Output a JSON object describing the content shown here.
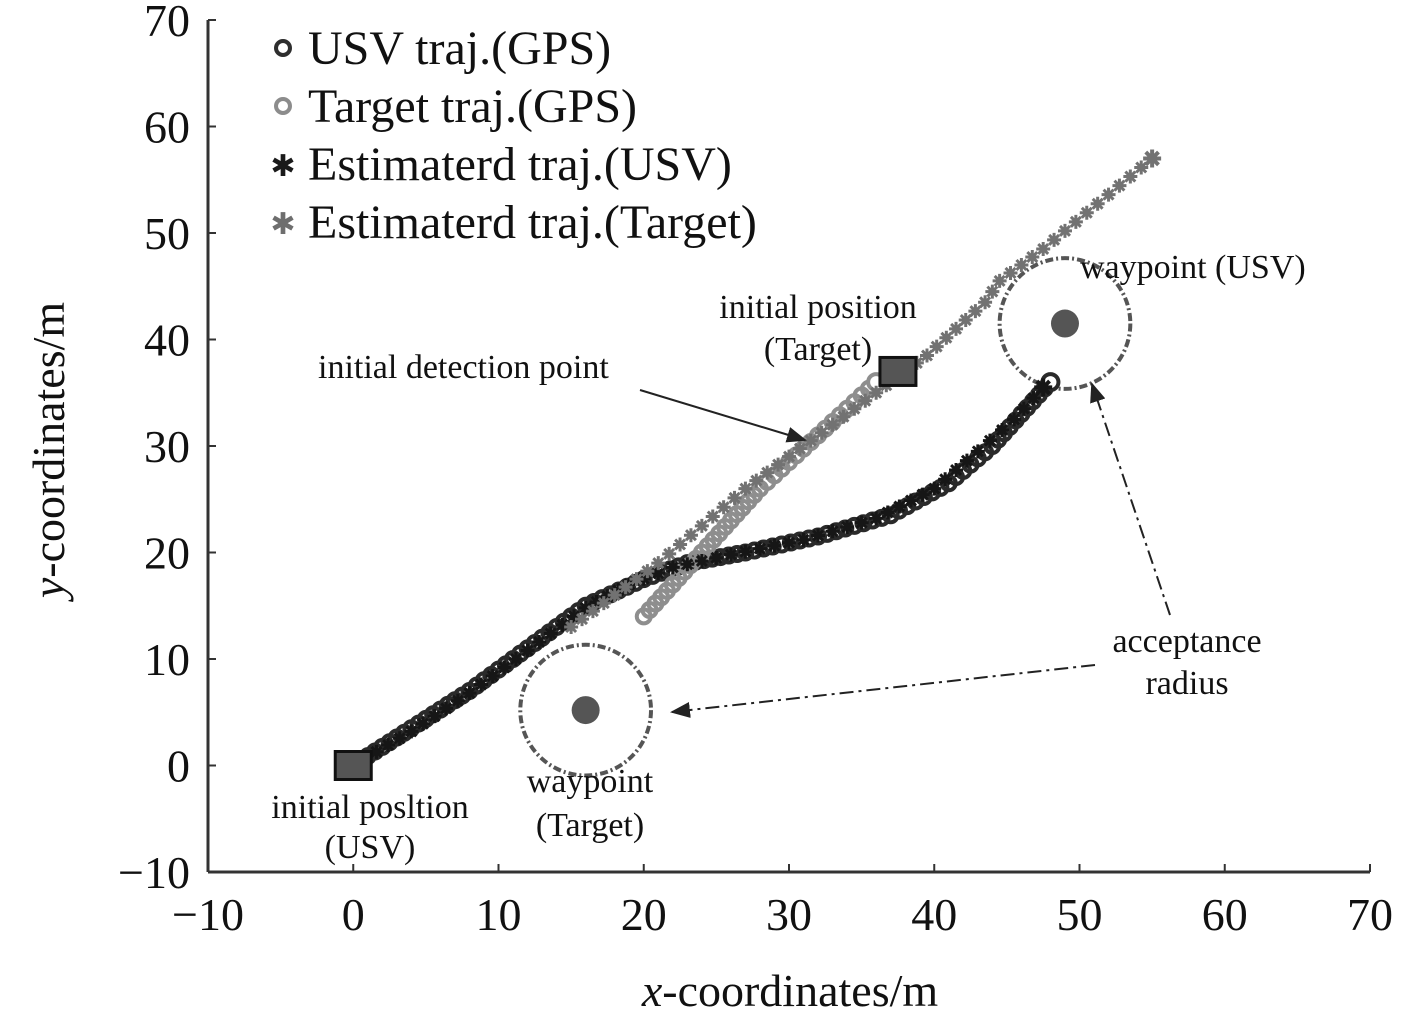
{
  "chart_data": {
    "type": "scatter",
    "title": "",
    "xlabel_var": "x",
    "xlabel_rest": "-coordinates/m",
    "ylabel_var": "y",
    "ylabel_rest": "-coordinates/m",
    "xlim": [
      -10,
      70
    ],
    "ylim": [
      -10,
      70
    ],
    "xticks": [
      -10,
      0,
      10,
      20,
      30,
      40,
      50,
      60,
      70
    ],
    "yticks": [
      -10,
      0,
      10,
      20,
      30,
      40,
      50,
      60,
      70
    ],
    "xtick_labels": [
      "−10",
      "0",
      "10",
      "20",
      "30",
      "40",
      "50",
      "60",
      "70"
    ],
    "ytick_labels": [
      "−10",
      "0",
      "10",
      "20",
      "30",
      "40",
      "50",
      "60",
      "70"
    ],
    "legend": [
      {
        "label": "USV traj.(GPS)",
        "marker": "ring",
        "color": "#2e2e2e"
      },
      {
        "label": "Target traj.(GPS)",
        "marker": "ring",
        "color": "#8c8c8c"
      },
      {
        "label": "Estimaterd traj.(USV)",
        "marker": "star",
        "color": "#1a1a1a"
      },
      {
        "label": "Estimaterd traj.(Target)",
        "marker": "star",
        "color": "#6e6e6e"
      }
    ],
    "series": [
      {
        "name": "USV traj.(GPS)",
        "color": "#2a2a2a",
        "x": [
          0,
          4,
          8,
          12,
          16,
          20,
          23,
          27,
          32,
          37,
          41,
          44,
          46,
          48
        ],
        "y": [
          0,
          3.5,
          7,
          11,
          15,
          17.5,
          19,
          20,
          21.5,
          23.5,
          26.5,
          30,
          33,
          36
        ]
      },
      {
        "name": "Target traj.(GPS)",
        "color": "#8e8e8e",
        "x": [
          20,
          22,
          24,
          26,
          28,
          30,
          32,
          34,
          36
        ],
        "y": [
          14,
          17,
          20,
          23,
          26,
          28.5,
          31,
          33.5,
          36
        ]
      },
      {
        "name": "Estimaterd traj.(USV)",
        "color": "#161616",
        "x": [
          0,
          4,
          8,
          12,
          16,
          19,
          22,
          26,
          31,
          36,
          40,
          43,
          45.5,
          47.5
        ],
        "y": [
          0,
          3.2,
          6.8,
          10.8,
          14.8,
          17,
          18.6,
          19.8,
          21.2,
          23.2,
          26,
          29.5,
          32.5,
          35.5
        ]
      },
      {
        "name": "Estimaterd traj.(Target)",
        "color": "#727272",
        "x": [
          15,
          18,
          21,
          24,
          27,
          30,
          33,
          36,
          39.5,
          41.5,
          43.5,
          44.5,
          47.5,
          55
        ],
        "y": [
          13,
          16,
          19,
          22.5,
          26,
          29,
          32,
          35,
          38.5,
          41,
          43.5,
          45.5,
          48.5,
          57
        ]
      }
    ],
    "markers": [
      {
        "name": "initial-position-usv",
        "x": 0,
        "y": 0
      },
      {
        "name": "initial-position-target",
        "x": 37.5,
        "y": 37
      }
    ],
    "circles": [
      {
        "name": "waypoint-usv",
        "cx": 49,
        "cy": 41.5,
        "r": 4.5
      },
      {
        "name": "waypoint-target",
        "cx": 16,
        "cy": 5.2,
        "r": 4.5
      }
    ],
    "annotations": {
      "initial_detection_point": "initial detection point",
      "initial_position_target_line1": "initial position",
      "initial_position_target_line2": "(Target)",
      "waypoint_usv": "waypoint (USV)",
      "acceptance_line1": "acceptance",
      "acceptance_line2": "radius",
      "initial_position_usv_line1": "initial posltion",
      "initial_position_usv_line2": "(USV)",
      "waypoint_target_line1": "waypoint",
      "waypoint_target_line2": "(Target)"
    }
  }
}
